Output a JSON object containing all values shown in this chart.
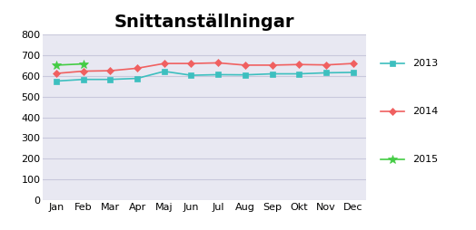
{
  "title": "Snittanställningar",
  "months": [
    "Jan",
    "Feb",
    "Mar",
    "Apr",
    "Maj",
    "Jun",
    "Jul",
    "Aug",
    "Sep",
    "Okt",
    "Nov",
    "Dec"
  ],
  "series": {
    "2013": [
      575,
      583,
      583,
      588,
      622,
      603,
      606,
      605,
      610,
      610,
      615,
      617
    ],
    "2014": [
      612,
      623,
      625,
      637,
      660,
      660,
      663,
      652,
      652,
      655,
      653,
      660
    ],
    "2015": [
      652,
      658,
      null,
      null,
      null,
      null,
      null,
      null,
      null,
      null,
      null,
      null
    ]
  },
  "colors": {
    "2013": "#3dbfbf",
    "2014": "#f06060",
    "2015": "#44cc44"
  },
  "markers": {
    "2013": "s",
    "2014": "D",
    "2015": "*"
  },
  "marker_sizes": {
    "2013": 4,
    "2014": 4,
    "2015": 7
  },
  "ylim": [
    0,
    800
  ],
  "yticks": [
    0,
    100,
    200,
    300,
    400,
    500,
    600,
    700,
    800
  ],
  "bg_color": "#e8e8f2",
  "plot_bg_color": "#e8e8f2",
  "grid_color": "#c8c8dc",
  "legend_bg": "#ffffff",
  "title_fontsize": 14,
  "tick_fontsize": 8,
  "legend_fontsize": 8
}
